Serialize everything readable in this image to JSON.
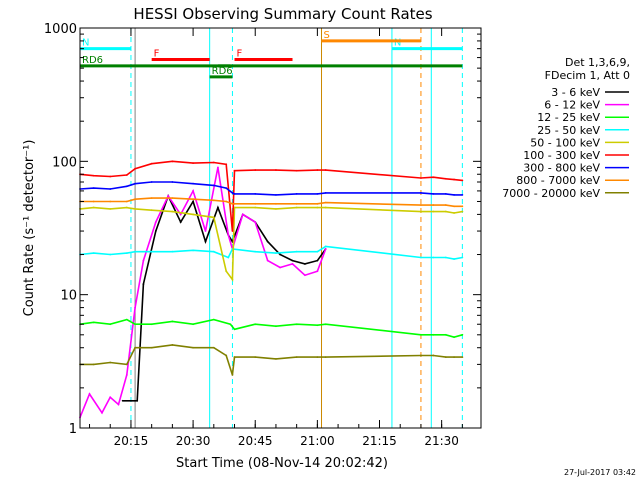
{
  "chart_data": {
    "type": "line",
    "title": "HESSI Observing Summary Count Rates",
    "xlabel": "Start Time (08-Nov-14 20:02:42)",
    "ylabel": "Count Rate (s⁻¹ detector⁻¹)",
    "yscale": "log",
    "ylim": [
      1,
      1000
    ],
    "xlim": [
      "20:02:42",
      "21:39:30"
    ],
    "grid": false,
    "legend_position": "right",
    "x_ticks": [
      "20:15",
      "20:30",
      "20:45",
      "21:00",
      "21:15",
      "21:30"
    ],
    "y_ticks": [
      "1",
      "10",
      "100",
      "1000"
    ],
    "legend_header": [
      "Det 1,3,6,9,",
      "FDecim 1, Att 0"
    ],
    "series": [
      {
        "name": "3 - 6 keV",
        "color": "#000000",
        "x": [
          "20:13:00",
          "20:15:00",
          "20:16:30",
          "20:18:00",
          "20:21:00",
          "20:24:00",
          "20:27:00",
          "20:30:00",
          "20:33:00",
          "20:36:00",
          "20:38:30",
          "20:39:30",
          "20:42:00",
          "20:45:00",
          "20:48:00",
          "20:51:00",
          "20:54:00",
          "20:57:00",
          "21:00:00",
          "21:02:00"
        ],
        "y": [
          1.6,
          1.6,
          1.6,
          12,
          30,
          55,
          35,
          50,
          25,
          45,
          28,
          25,
          40,
          35,
          25,
          20,
          18,
          17,
          18,
          22
        ]
      },
      {
        "name": "6 - 12 keV",
        "color": "#ff00ff",
        "x": [
          "20:02:42",
          "20:05:00",
          "20:08:00",
          "20:10:00",
          "20:12:00",
          "20:14:00",
          "20:16:00",
          "20:18:00",
          "20:21:00",
          "20:24:00",
          "20:27:00",
          "20:30:00",
          "20:33:00",
          "20:36:00",
          "20:38:30",
          "20:39:30",
          "20:42:00",
          "20:45:00",
          "20:48:00",
          "20:51:00",
          "20:54:00",
          "20:57:00",
          "21:00:00",
          "21:02:00"
        ],
        "y": [
          1.2,
          1.8,
          1.3,
          1.7,
          1.5,
          2.5,
          8,
          18,
          35,
          55,
          40,
          60,
          30,
          90,
          28,
          22,
          40,
          35,
          18,
          16,
          17,
          14,
          15,
          22
        ]
      },
      {
        "name": "12 - 25 keV",
        "color": "#00ff00",
        "x": [
          "20:02:42",
          "20:06:00",
          "20:10:00",
          "20:14:00",
          "20:16:00",
          "20:20:00",
          "20:25:00",
          "20:30:00",
          "20:35:00",
          "20:39:00",
          "20:40:00",
          "20:45:00",
          "20:50:00",
          "20:55:00",
          "21:00:00",
          "21:02:00",
          "21:25:00",
          "21:28:00",
          "21:31:00",
          "21:33:00",
          "21:35:00"
        ],
        "y": [
          6,
          6.2,
          6,
          6.5,
          6,
          6,
          6.3,
          6,
          6.5,
          6,
          5.5,
          6,
          5.8,
          6,
          5.9,
          6,
          5,
          5,
          5,
          4.8,
          5
        ]
      },
      {
        "name": "25 - 50 keV",
        "color": "#00ffff",
        "x": [
          "20:02:42",
          "20:06:00",
          "20:10:00",
          "20:14:00",
          "20:16:00",
          "20:20:00",
          "20:25:00",
          "20:30:00",
          "20:35:00",
          "20:38:30",
          "20:39:30",
          "20:45:00",
          "20:50:00",
          "20:55:00",
          "21:00:00",
          "21:02:00",
          "21:25:00",
          "21:28:00",
          "21:31:00",
          "21:33:00",
          "21:35:00"
        ],
        "y": [
          20,
          20.5,
          20,
          20.5,
          21,
          21,
          21,
          21.5,
          21,
          19,
          22,
          21,
          20.5,
          21,
          21,
          23,
          19,
          19,
          19,
          18.5,
          19
        ]
      },
      {
        "name": "50 - 100 keV",
        "color": "#cccc00",
        "x": [
          "20:02:42",
          "20:06:00",
          "20:10:00",
          "20:14:00",
          "20:16:00",
          "20:20:00",
          "20:25:00",
          "20:30:00",
          "20:35:00",
          "20:38:00",
          "20:39:30",
          "20:40:00",
          "20:45:00",
          "20:50:00",
          "20:55:00",
          "21:00:00",
          "21:02:00",
          "21:25:00",
          "21:28:00",
          "21:31:00",
          "21:33:00",
          "21:35:00"
        ],
        "y": [
          44,
          45,
          44,
          45,
          44,
          43,
          42,
          40,
          38,
          15,
          13,
          45,
          45,
          44,
          45,
          45,
          45,
          42,
          42,
          42,
          41,
          42
        ]
      },
      {
        "name": "100 - 300 keV",
        "color": "#ff0000",
        "x": [
          "20:02:42",
          "20:06:00",
          "20:10:00",
          "20:14:00",
          "20:16:00",
          "20:20:00",
          "20:25:00",
          "20:30:00",
          "20:35:00",
          "20:38:00",
          "20:39:30",
          "20:40:00",
          "20:45:00",
          "20:50:00",
          "20:55:00",
          "21:00:00",
          "21:02:00",
          "21:25:00",
          "21:28:00",
          "21:31:00",
          "21:33:00",
          "21:35:00"
        ],
        "y": [
          80,
          78,
          77,
          79,
          88,
          96,
          100,
          97,
          98,
          95,
          30,
          85,
          86,
          86,
          85,
          86,
          86,
          75,
          76,
          74,
          73,
          72
        ]
      },
      {
        "name": "300 - 800 keV",
        "color": "#0000ff",
        "x": [
          "20:02:42",
          "20:06:00",
          "20:10:00",
          "20:14:00",
          "20:16:00",
          "20:20:00",
          "20:25:00",
          "20:30:00",
          "20:35:00",
          "20:38:00",
          "20:39:30",
          "20:40:00",
          "20:45:00",
          "20:50:00",
          "20:55:00",
          "21:00:00",
          "21:02:00",
          "21:25:00",
          "21:28:00",
          "21:31:00",
          "21:33:00",
          "21:35:00"
        ],
        "y": [
          62,
          63,
          62,
          65,
          68,
          70,
          70,
          68,
          66,
          63,
          58,
          57,
          57,
          56,
          57,
          57,
          58,
          58,
          57,
          57,
          56,
          56
        ]
      },
      {
        "name": "800 - 7000 keV",
        "color": "#ff8800",
        "x": [
          "20:02:42",
          "20:06:00",
          "20:10:00",
          "20:14:00",
          "20:16:00",
          "20:20:00",
          "20:25:00",
          "20:30:00",
          "20:35:00",
          "20:38:00",
          "20:39:30",
          "20:40:00",
          "20:45:00",
          "20:50:00",
          "20:55:00",
          "21:00:00",
          "21:02:00",
          "21:25:00",
          "21:28:00",
          "21:31:00",
          "21:33:00",
          "21:35:00"
        ],
        "y": [
          50,
          50,
          50,
          50,
          52,
          53,
          53,
          52,
          51,
          50,
          48,
          48,
          48,
          48,
          48,
          48,
          49,
          47,
          47,
          47,
          46,
          46
        ]
      },
      {
        "name": "7000 - 20000 keV",
        "color": "#808000",
        "x": [
          "20:02:42",
          "20:06:00",
          "20:10:00",
          "20:14:00",
          "20:16:00",
          "20:20:00",
          "20:25:00",
          "20:30:00",
          "20:35:00",
          "20:38:00",
          "20:39:30",
          "20:40:00",
          "20:45:00",
          "20:50:00",
          "20:55:00",
          "21:00:00",
          "21:02:00",
          "21:25:00",
          "21:28:00",
          "21:31:00",
          "21:33:00",
          "21:35:00"
        ],
        "y": [
          3,
          3,
          3.1,
          3,
          4,
          4,
          4.2,
          4,
          4,
          3.5,
          2.5,
          3.4,
          3.4,
          3.3,
          3.4,
          3.4,
          3.4,
          3.5,
          3.5,
          3.4,
          3.4,
          3.4
        ]
      }
    ],
    "annotations": [
      {
        "label": "N",
        "color": "#00ffff",
        "y": 700,
        "x_start": "20:02:42",
        "x_end": "20:15:00"
      },
      {
        "label": "N",
        "color": "#00ffff",
        "y": 700,
        "x_start": "21:18:00",
        "x_end": "21:35:00"
      },
      {
        "label": "F",
        "color": "#ff0000",
        "y": 580,
        "x_start": "20:20:00",
        "x_end": "20:34:00"
      },
      {
        "label": "F",
        "color": "#ff0000",
        "y": 580,
        "x_start": "20:40:00",
        "x_end": "20:54:00"
      },
      {
        "label": "S",
        "color": "#ff8800",
        "y": 800,
        "x_start": "21:01:00",
        "x_end": "21:25:00"
      },
      {
        "label": "RD6",
        "color": "#008000",
        "y": 520,
        "x_start": "20:02:42",
        "x_end": "21:35:00"
      },
      {
        "label": "RD6",
        "color": "#008000",
        "y": 430,
        "x_start": "20:34:00",
        "x_end": "20:39:30"
      },
      {
        "label": "",
        "color": "#008000",
        "y": 520,
        "x_start": "20:36:00",
        "x_end": "20:39:00"
      }
    ],
    "vertical_lines": [
      {
        "x": "20:02:42",
        "color": "#00ffff",
        "style": "solid"
      },
      {
        "x": "20:15:00",
        "color": "#00ffff",
        "style": "dashed"
      },
      {
        "x": "20:34:00",
        "color": "#00ffff",
        "style": "solid"
      },
      {
        "x": "20:39:30",
        "color": "#00ffff",
        "style": "dashed"
      },
      {
        "x": "20:16:00",
        "color": "#808080",
        "style": "solid"
      },
      {
        "x": "21:01:00",
        "color": "#cc8800",
        "style": "solid"
      },
      {
        "x": "21:18:00",
        "color": "#00ffff",
        "style": "solid"
      },
      {
        "x": "21:25:00",
        "color": "#ff8800",
        "style": "dashed"
      },
      {
        "x": "21:27:30",
        "color": "#00ffff",
        "style": "solid"
      },
      {
        "x": "21:35:00",
        "color": "#00ffff",
        "style": "dashed"
      }
    ]
  },
  "footer": {
    "timestamp": "27-Jul-2017 03:42"
  }
}
